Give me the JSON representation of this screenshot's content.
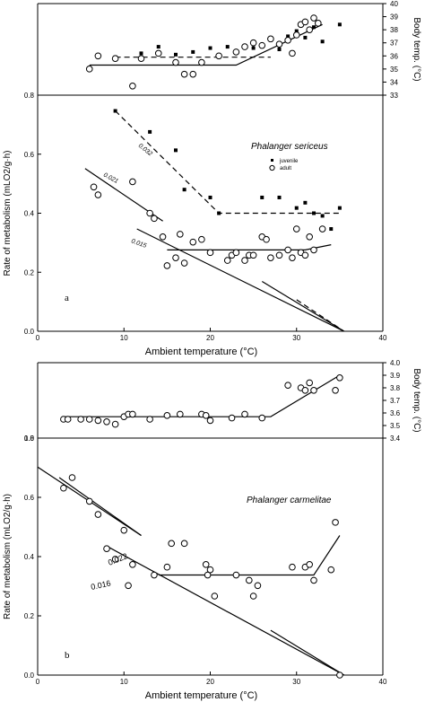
{
  "chart_data": [
    {
      "type": "scatter",
      "title": "",
      "xlabel": "",
      "ylabel": "Body temp. (°C)",
      "xlim": [
        0,
        40
      ],
      "ylim": [
        33,
        40
      ],
      "y_ticks": [
        "33",
        "34",
        "35",
        "36",
        "37",
        "38",
        "39",
        "40"
      ],
      "series": [
        {
          "marker": "filled",
          "values": [
            [
              9,
              35.9
            ],
            [
              12,
              36.2
            ],
            [
              14,
              36.7
            ],
            [
              16,
              36.1
            ],
            [
              18,
              36.3
            ],
            [
              20,
              36.6
            ],
            [
              22,
              36.7
            ],
            [
              25,
              36.6
            ],
            [
              27,
              37.2
            ],
            [
              28,
              36.5
            ],
            [
              29,
              37.5
            ],
            [
              30,
              37.9
            ],
            [
              31,
              37.4
            ],
            [
              33,
              37.1
            ],
            [
              35,
              38.4
            ],
            [
              32,
              38.2
            ]
          ]
        },
        {
          "marker": "open",
          "values": [
            [
              6,
              35.0
            ],
            [
              7,
              36.0
            ],
            [
              9,
              35.8
            ],
            [
              11,
              33.7
            ],
            [
              12,
              35.8
            ],
            [
              14,
              36.2
            ],
            [
              16,
              35.5
            ],
            [
              17,
              34.6
            ],
            [
              18,
              34.6
            ],
            [
              19,
              35.5
            ],
            [
              21,
              36.0
            ],
            [
              23,
              36.3
            ],
            [
              24,
              36.7
            ],
            [
              25,
              37.0
            ],
            [
              26,
              36.8
            ],
            [
              27,
              37.3
            ],
            [
              28,
              36.9
            ],
            [
              29,
              37.2
            ],
            [
              29.5,
              36.2
            ],
            [
              30,
              37.6
            ],
            [
              30.5,
              38.4
            ],
            [
              31,
              38.6
            ],
            [
              31.5,
              38.0
            ],
            [
              32,
              38.9
            ],
            [
              32.5,
              38.5
            ]
          ]
        }
      ],
      "fits": [
        {
          "style": "solid",
          "points": [
            [
              6,
              35.3
            ],
            [
              23,
              35.3
            ],
            [
              33,
              38.4
            ]
          ]
        },
        {
          "style": "dashed",
          "points": [
            [
              9,
              35.9
            ],
            [
              27,
              35.9
            ]
          ]
        }
      ]
    },
    {
      "type": "scatter",
      "title": "",
      "xlabel": "Ambient temperature (°C)",
      "ylabel": "Rate of metabolism (mLO2/g·h)",
      "panel_label": "a",
      "species": "Phalanger sericeus",
      "legend": [
        "juvenile",
        "adult"
      ],
      "xlim": [
        0,
        40
      ],
      "ylim": [
        0,
        0.9
      ],
      "x_ticks": [
        "0",
        "10",
        "20",
        "30",
        "40"
      ],
      "y_ticks": [
        "0.0",
        "0.2",
        "0.4",
        "0.6",
        "0.8"
      ],
      "series": [
        {
          "name": "juvenile",
          "marker": "filled",
          "values": [
            [
              9,
              0.84
            ],
            [
              13,
              0.76
            ],
            [
              16,
              0.69
            ],
            [
              17,
              0.54
            ],
            [
              20,
              0.51
            ],
            [
              21,
              0.45
            ],
            [
              26,
              0.51
            ],
            [
              28,
              0.51
            ],
            [
              30,
              0.47
            ],
            [
              31,
              0.49
            ],
            [
              32,
              0.45
            ],
            [
              33,
              0.44
            ],
            [
              35,
              0.47
            ],
            [
              34,
              0.39
            ]
          ]
        },
        {
          "name": "adult",
          "marker": "open",
          "values": [
            [
              6.5,
              0.55
            ],
            [
              7,
              0.52
            ],
            [
              11,
              0.57
            ],
            [
              13,
              0.45
            ],
            [
              13.5,
              0.43
            ],
            [
              14.5,
              0.36
            ],
            [
              15,
              0.25
            ],
            [
              16,
              0.28
            ],
            [
              16.5,
              0.37
            ],
            [
              17,
              0.26
            ],
            [
              18,
              0.34
            ],
            [
              19,
              0.35
            ],
            [
              20,
              0.3
            ],
            [
              22,
              0.27
            ],
            [
              22.5,
              0.29
            ],
            [
              23,
              0.3
            ],
            [
              24,
              0.27
            ],
            [
              24.5,
              0.29
            ],
            [
              25,
              0.29
            ],
            [
              26,
              0.36
            ],
            [
              26.5,
              0.35
            ],
            [
              27,
              0.28
            ],
            [
              28,
              0.29
            ],
            [
              29,
              0.31
            ],
            [
              29.5,
              0.28
            ],
            [
              30,
              0.39
            ],
            [
              30.5,
              0.3
            ],
            [
              31,
              0.29
            ],
            [
              31.5,
              0.36
            ],
            [
              32,
              0.31
            ],
            [
              33,
              0.39
            ]
          ]
        }
      ],
      "fits": [
        {
          "style": "dashed",
          "label": "0.032",
          "points": [
            [
              9,
              0.84
            ],
            [
              21,
              0.45
            ],
            [
              35,
              0.45
            ]
          ]
        },
        {
          "style": "solid",
          "label": "0.021",
          "points": [
            [
              5.5,
              0.62
            ],
            [
              14.5,
              0.42
            ]
          ]
        },
        {
          "style": "solid",
          "label": "0.015",
          "points": [
            [
              11.5,
              0.39
            ],
            [
              35.5,
              0.0
            ]
          ]
        },
        {
          "style": "solid",
          "points": [
            [
              15,
              0.31
            ],
            [
              31,
              0.31
            ],
            [
              34,
              0.33
            ]
          ]
        },
        {
          "style": "solid",
          "points": [
            [
              26,
              0.19
            ],
            [
              35.5,
              0.0
            ]
          ]
        },
        {
          "style": "dashed",
          "points": [
            [
              30,
              0.12
            ],
            [
              35.5,
              0.0
            ]
          ]
        }
      ]
    },
    {
      "type": "scatter",
      "title": "",
      "xlabel": "",
      "ylabel": "Body temp. (°C)",
      "xlim": [
        0,
        40
      ],
      "ylim": [
        34,
        40
      ],
      "y_ticks": [
        "3.4",
        "3.5",
        "3.6",
        "3.7",
        "3.8",
        "3.9",
        "4.0"
      ],
      "x_ticks": [
        "1.0"
      ],
      "series": [
        {
          "marker": "open",
          "values": [
            [
              3,
              35.5
            ],
            [
              3.5,
              35.5
            ],
            [
              5,
              35.5
            ],
            [
              6,
              35.5
            ],
            [
              7,
              35.4
            ],
            [
              8,
              35.3
            ],
            [
              9,
              35.1
            ],
            [
              10,
              35.7
            ],
            [
              10.5,
              35.9
            ],
            [
              11,
              35.9
            ],
            [
              13,
              35.5
            ],
            [
              15,
              35.8
            ],
            [
              16.5,
              35.9
            ],
            [
              19,
              35.9
            ],
            [
              19.5,
              35.8
            ],
            [
              20,
              35.4
            ],
            [
              22.5,
              35.6
            ],
            [
              24,
              35.9
            ],
            [
              26,
              35.6
            ],
            [
              29,
              38.2
            ],
            [
              30.5,
              38.0
            ],
            [
              31,
              37.8
            ],
            [
              31.5,
              38.4
            ],
            [
              32,
              37.8
            ],
            [
              34.5,
              37.8
            ],
            [
              35,
              38.8
            ]
          ]
        }
      ],
      "fits": [
        {
          "style": "solid",
          "points": [
            [
              3,
              35.7
            ],
            [
              27,
              35.7
            ],
            [
              35,
              39.0
            ]
          ]
        }
      ]
    },
    {
      "type": "scatter",
      "title": "",
      "xlabel": "Ambient temperature (°C)",
      "ylabel": "Rate of metabolism (mLO2/g·h)",
      "panel_label": "b",
      "species": "Phalanger carmelitae",
      "xlim": [
        0,
        40
      ],
      "ylim": [
        0,
        0.9
      ],
      "x_ticks": [
        "0",
        "10",
        "20",
        "30",
        "40"
      ],
      "y_ticks": [
        "0.0",
        "0.2",
        "0.4",
        "0.6",
        "0.8"
      ],
      "series": [
        {
          "marker": "open",
          "values": [
            [
              3,
              0.71
            ],
            [
              4,
              0.75
            ],
            [
              6,
              0.66
            ],
            [
              7,
              0.61
            ],
            [
              8,
              0.48
            ],
            [
              9,
              0.44
            ],
            [
              10,
              0.55
            ],
            [
              10.5,
              0.34
            ],
            [
              11,
              0.42
            ],
            [
              13.5,
              0.38
            ],
            [
              15,
              0.41
            ],
            [
              15.5,
              0.5
            ],
            [
              17,
              0.5
            ],
            [
              19.5,
              0.42
            ],
            [
              19.7,
              0.38
            ],
            [
              20,
              0.4
            ],
            [
              20.5,
              0.3
            ],
            [
              23,
              0.38
            ],
            [
              24.5,
              0.36
            ],
            [
              25,
              0.3
            ],
            [
              25.5,
              0.34
            ],
            [
              29.5,
              0.41
            ],
            [
              31,
              0.41
            ],
            [
              31.5,
              0.42
            ],
            [
              32,
              0.36
            ],
            [
              34,
              0.4
            ],
            [
              34.5,
              0.58
            ],
            [
              35,
              0.0
            ]
          ]
        }
      ],
      "fits": [
        {
          "style": "solid",
          "points": [
            [
              0,
              0.79
            ],
            [
              0,
              0.79
            ],
            [
              12,
              0.53
            ]
          ]
        },
        {
          "style": "solid",
          "label": "0.022",
          "points": [
            [
              2.5,
              0.75
            ],
            [
              12,
              0.53
            ]
          ]
        },
        {
          "style": "solid",
          "label": "0.016",
          "points": [
            [
              8,
              0.49
            ],
            [
              35.5,
              0.0
            ]
          ]
        },
        {
          "style": "solid",
          "points": [
            [
              14,
              0.38
            ],
            [
              32,
              0.38
            ],
            [
              35,
              0.53
            ]
          ]
        },
        {
          "style": "solid",
          "points": [
            [
              27,
              0.17
            ],
            [
              35.5,
              0.0
            ]
          ]
        }
      ]
    }
  ],
  "labels": {
    "label_0032": "0.032",
    "label_0021": "0.021",
    "label_0015": "0.015",
    "label_0022": "0.022",
    "label_0016": "0.016"
  }
}
